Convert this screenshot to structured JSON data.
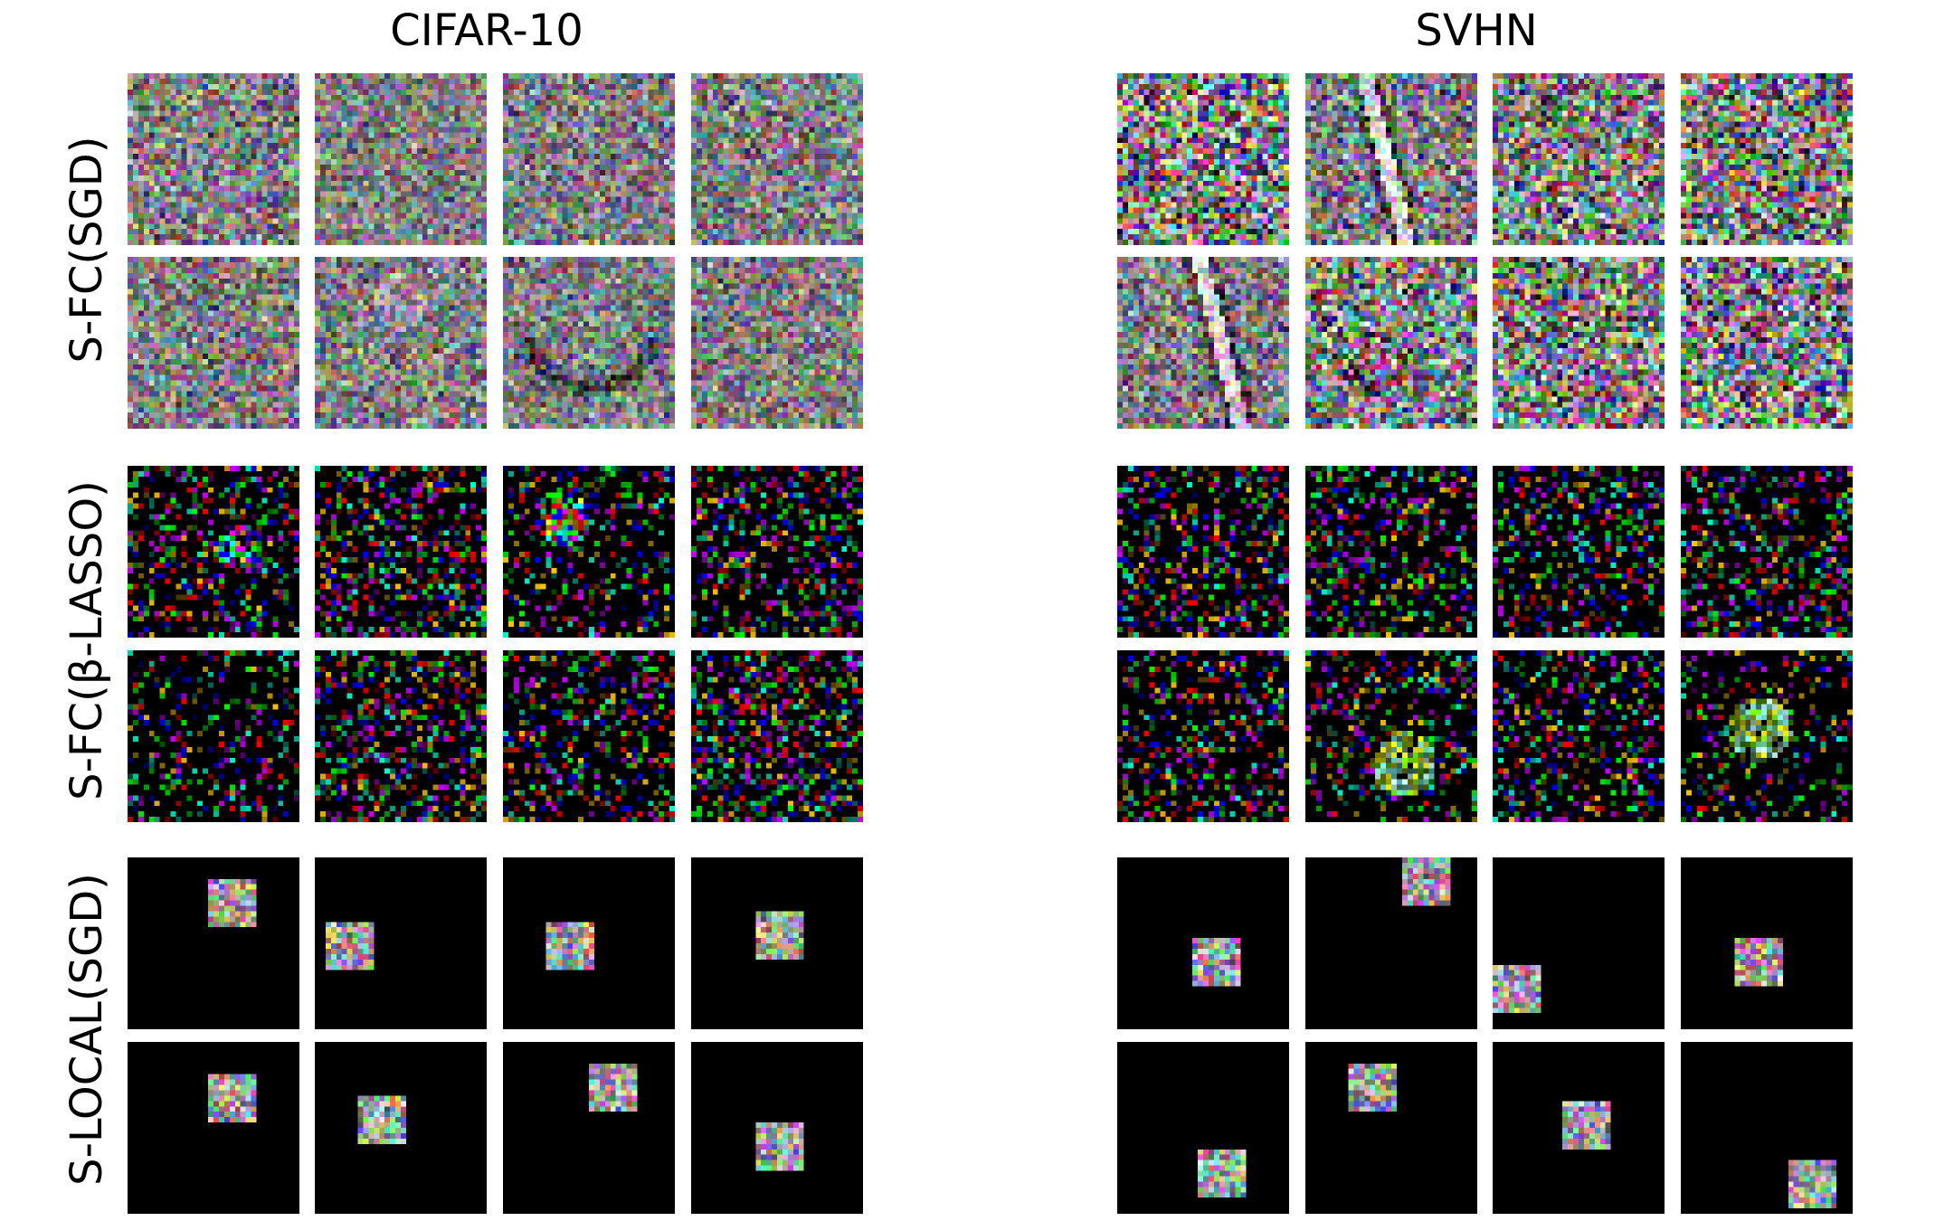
{
  "columns": [
    {
      "title": "CIFAR-10"
    },
    {
      "title": "SVHN"
    }
  ],
  "rows": [
    {
      "label": "S-FC(SGD)",
      "style": "noise"
    },
    {
      "label": "S-FC(β-LASSO)",
      "style": "sparse"
    },
    {
      "label": "S-LOCAL(SGD)",
      "style": "local"
    }
  ],
  "panels": [
    {
      "column": 0,
      "row": 0,
      "tiles": [
        {
          "mode": "noise",
          "noise": 0.45,
          "structure": "none"
        },
        {
          "mode": "noise",
          "noise": 0.35,
          "structure": "none"
        },
        {
          "mode": "noise",
          "noise": 0.4,
          "structure": "none"
        },
        {
          "mode": "noise",
          "noise": 0.42,
          "structure": "none"
        },
        {
          "mode": "noise",
          "noise": 0.42,
          "structure": "none"
        },
        {
          "mode": "noise",
          "noise": 0.4,
          "structure": "blob"
        },
        {
          "mode": "noise",
          "noise": 0.38,
          "structure": "arc"
        },
        {
          "mode": "noise",
          "noise": 0.4,
          "structure": "none"
        }
      ]
    },
    {
      "column": 1,
      "row": 0,
      "tiles": [
        {
          "mode": "noise",
          "noise": 0.95,
          "structure": "none"
        },
        {
          "mode": "noise",
          "noise": 0.55,
          "structure": "stroke"
        },
        {
          "mode": "noise",
          "noise": 0.75,
          "structure": "faint"
        },
        {
          "mode": "noise",
          "noise": 0.85,
          "structure": "none"
        },
        {
          "mode": "noise",
          "noise": 0.45,
          "structure": "stroke"
        },
        {
          "mode": "noise",
          "noise": 0.8,
          "structure": "faint"
        },
        {
          "mode": "noise",
          "noise": 0.85,
          "structure": "none"
        },
        {
          "mode": "noise",
          "noise": 0.9,
          "structure": "none"
        }
      ]
    },
    {
      "column": 0,
      "row": 1,
      "tiles": [
        {
          "mode": "sparse",
          "density": 0.35,
          "structure": "cluster"
        },
        {
          "mode": "sparse",
          "density": 0.4,
          "structure": "none"
        },
        {
          "mode": "sparse",
          "density": 0.3,
          "structure": "bright"
        },
        {
          "mode": "sparse",
          "density": 0.4,
          "structure": "none"
        },
        {
          "mode": "sparse",
          "density": 0.25,
          "structure": "none"
        },
        {
          "mode": "sparse",
          "density": 0.45,
          "structure": "none"
        },
        {
          "mode": "sparse",
          "density": 0.35,
          "structure": "none"
        },
        {
          "mode": "sparse",
          "density": 0.45,
          "structure": "none"
        }
      ]
    },
    {
      "column": 1,
      "row": 1,
      "tiles": [
        {
          "mode": "sparse",
          "density": 0.4,
          "structure": "none"
        },
        {
          "mode": "sparse",
          "density": 0.4,
          "structure": "none"
        },
        {
          "mode": "sparse",
          "density": 0.35,
          "structure": "none"
        },
        {
          "mode": "sparse",
          "density": 0.4,
          "structure": "none"
        },
        {
          "mode": "sparse",
          "density": 0.35,
          "structure": "none"
        },
        {
          "mode": "sparse",
          "density": 0.3,
          "structure": "glow"
        },
        {
          "mode": "sparse",
          "density": 0.35,
          "structure": "none"
        },
        {
          "mode": "sparse",
          "density": 0.25,
          "structure": "glow"
        }
      ]
    },
    {
      "column": 0,
      "row": 2,
      "tiles": [
        {
          "mode": "local",
          "patch": [
            0.48,
            0.12
          ]
        },
        {
          "mode": "local",
          "patch": [
            0.06,
            0.38
          ]
        },
        {
          "mode": "local",
          "patch": [
            0.24,
            0.36
          ]
        },
        {
          "mode": "local",
          "patch": [
            0.38,
            0.3
          ]
        },
        {
          "mode": "local",
          "patch": [
            0.48,
            0.2
          ]
        },
        {
          "mode": "local",
          "patch": [
            0.26,
            0.32
          ]
        },
        {
          "mode": "local",
          "patch": [
            0.5,
            0.12
          ]
        },
        {
          "mode": "local",
          "patch": [
            0.38,
            0.46
          ]
        }
      ]
    },
    {
      "column": 1,
      "row": 2,
      "tiles": [
        {
          "mode": "local",
          "patch": [
            0.44,
            0.46
          ]
        },
        {
          "mode": "local",
          "patch": [
            0.56,
            0.0
          ]
        },
        {
          "mode": "local",
          "patch": [
            0.0,
            0.62
          ]
        },
        {
          "mode": "local",
          "patch": [
            0.3,
            0.48
          ]
        },
        {
          "mode": "local",
          "patch": [
            0.48,
            0.62
          ]
        },
        {
          "mode": "local",
          "patch": [
            0.26,
            0.12
          ]
        },
        {
          "mode": "local",
          "patch": [
            0.4,
            0.34
          ]
        },
        {
          "mode": "local",
          "patch": [
            0.62,
            0.7
          ]
        }
      ]
    }
  ]
}
